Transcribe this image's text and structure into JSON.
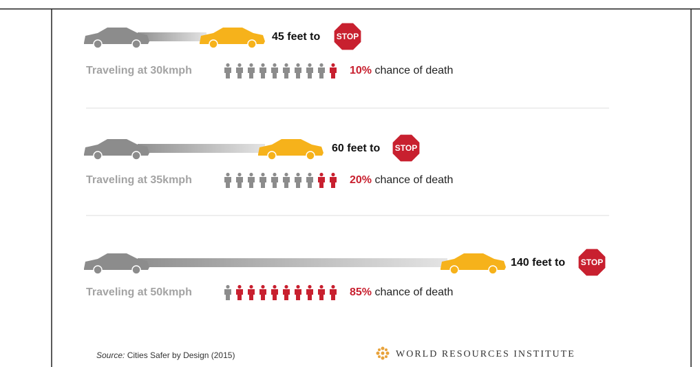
{
  "rows": [
    {
      "distance": "45 feet to",
      "stop": "STOP",
      "speed": "Traveling at 30kmph",
      "chance": "10%",
      "chance_text": "chance of death",
      "icons_total": 10,
      "icons_red": 1
    },
    {
      "distance": "60 feet to",
      "stop": "STOP",
      "speed": "Traveling at 35kmph",
      "chance": "20%",
      "chance_text": "chance of death",
      "icons_total": 10,
      "icons_red": 2
    },
    {
      "distance": "140 feet to",
      "stop": "STOP",
      "speed": "Traveling at 50kmph",
      "chance": "85%",
      "chance_text": "chance of death",
      "icons_total": 10,
      "icons_red": 9
    }
  ],
  "footer": {
    "source_label": "Source:",
    "source": "Cities Safer by Design (2015)",
    "org": "WORLD RESOURCES INSTITUTE"
  }
}
